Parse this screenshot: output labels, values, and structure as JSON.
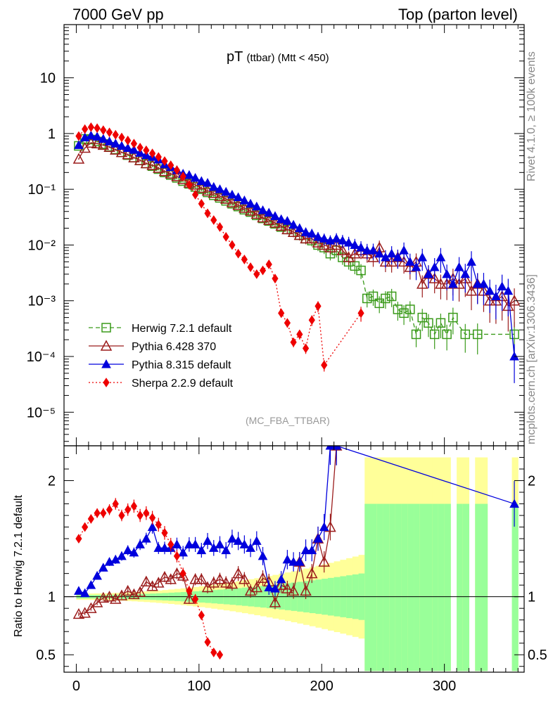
{
  "header": {
    "left": "7000 GeV pp",
    "right": "Top (parton level)"
  },
  "side_labels": {
    "top": "Rivet 4.1.0, ≥ 100k events",
    "bottom": "mcplots.cern.ch [arXiv:1306.3436]"
  },
  "plot": {
    "title_main": "pT",
    "title_sub": "(ttbar) (Mtt < 450)",
    "analysis_name": "(MC_FBA_TTBAR)",
    "ratio_ylabel": "Ratio to Herwig 7.2.1 default"
  },
  "colors": {
    "herwig": "#3a9a1a",
    "pythia6": "#9b1c1c",
    "pythia8": "#0000dd",
    "sherpa": "#ee0000",
    "band_green": "#99ff99",
    "band_yellow": "#ffff99"
  },
  "chart_data": {
    "type": "scatter",
    "xlim": [
      -10,
      365
    ],
    "main_ylim": [
      2.5e-06,
      90
    ],
    "ratio_ylim": [
      0.35,
      2.3
    ],
    "x_ticks": [
      0,
      100,
      200,
      300
    ],
    "x_tick_labels": [
      "0",
      "100",
      "200",
      "300"
    ],
    "main_y_ticks": [
      1e-05,
      0.0001,
      0.001,
      0.01,
      0.1,
      1,
      10
    ],
    "main_y_tick_labels": [
      "10⁻⁵",
      "10⁻⁴",
      "10⁻³",
      "10⁻²",
      "10⁻¹",
      "1",
      "10"
    ],
    "ratio_y_ticks": [
      0.5,
      1,
      2
    ],
    "ratio_y_tick_labels": [
      "0.5",
      "1",
      "2"
    ],
    "legend": [
      {
        "name": "Herwig 7.2.1 default",
        "marker": "square-open",
        "line": "dashed"
      },
      {
        "name": "Pythia 6.428 370",
        "marker": "triangle-open",
        "line": "solid"
      },
      {
        "name": "Pythia 8.315 default",
        "marker": "triangle-filled",
        "line": "solid"
      },
      {
        "name": "Sherpa 2.2.9 default",
        "marker": "diamond-filled",
        "line": "dotted"
      }
    ],
    "series": [
      {
        "name": "Herwig 7.2.1 default",
        "x": [
          2,
          7,
          12,
          17,
          22,
          27,
          32,
          37,
          42,
          47,
          52,
          57,
          62,
          67,
          72,
          77,
          82,
          87,
          92,
          97,
          102,
          107,
          112,
          117,
          122,
          127,
          132,
          137,
          142,
          147,
          152,
          157,
          162,
          167,
          172,
          177,
          182,
          187,
          192,
          197,
          202,
          207,
          212,
          217,
          222,
          227,
          232,
          237,
          242,
          247,
          252,
          257,
          262,
          267,
          272,
          277,
          282,
          287,
          292,
          297,
          302,
          307,
          317,
          327,
          357
        ],
        "y": [
          0.6,
          0.8,
          0.78,
          0.72,
          0.65,
          0.58,
          0.52,
          0.46,
          0.41,
          0.37,
          0.33,
          0.29,
          0.26,
          0.23,
          0.2,
          0.18,
          0.16,
          0.14,
          0.125,
          0.11,
          0.1,
          0.088,
          0.078,
          0.07,
          0.062,
          0.055,
          0.049,
          0.043,
          0.039,
          0.034,
          0.03,
          0.027,
          0.024,
          0.021,
          0.019,
          0.017,
          0.015,
          0.013,
          0.012,
          0.01,
          0.009,
          0.007,
          0.008,
          0.006,
          0.005,
          0.0042,
          0.0035,
          0.0011,
          0.0012,
          0.0009,
          0.0011,
          0.0012,
          0.0007,
          0.0006,
          0.0007,
          0.00025,
          0.0005,
          0.0004,
          0.00025,
          0.0004,
          0.00025,
          0.0005,
          0.00025,
          0.00025,
          0.00025
        ]
      },
      {
        "name": "Pythia 6.428 370",
        "x": [
          2,
          7,
          12,
          17,
          22,
          27,
          32,
          37,
          42,
          47,
          52,
          57,
          62,
          67,
          72,
          77,
          82,
          87,
          92,
          97,
          102,
          107,
          112,
          117,
          122,
          127,
          132,
          137,
          142,
          147,
          152,
          157,
          162,
          167,
          172,
          177,
          182,
          187,
          192,
          197,
          202,
          207,
          212,
          217,
          222,
          227,
          232,
          237,
          242,
          247,
          252,
          257,
          262,
          267,
          272,
          277,
          282,
          287,
          292,
          297,
          302,
          307,
          312,
          317,
          322,
          327,
          332,
          337,
          342,
          347,
          352,
          357
        ],
        "y": [
          0.35,
          0.55,
          0.68,
          0.66,
          0.62,
          0.57,
          0.51,
          0.46,
          0.42,
          0.37,
          0.33,
          0.29,
          0.27,
          0.24,
          0.21,
          0.19,
          0.17,
          0.15,
          0.13,
          0.12,
          0.105,
          0.094,
          0.085,
          0.075,
          0.067,
          0.058,
          0.052,
          0.046,
          0.041,
          0.036,
          0.031,
          0.028,
          0.025,
          0.022,
          0.019,
          0.017,
          0.015,
          0.013,
          0.013,
          0.011,
          0.01,
          0.009,
          0.01,
          0.008,
          0.006,
          0.007,
          0.008,
          0.007,
          0.006,
          0.009,
          0.005,
          0.005,
          0.006,
          0.005,
          0.004,
          0.005,
          0.002,
          0.003,
          0.0025,
          0.002,
          0.002,
          0.0025,
          0.002,
          0.0025,
          0.0015,
          0.002,
          0.0015,
          0.001,
          0.001,
          0.0012,
          0.0008,
          0.001
        ]
      },
      {
        "name": "Pythia 8.315 default",
        "x": [
          2,
          7,
          12,
          17,
          22,
          27,
          32,
          37,
          42,
          47,
          52,
          57,
          62,
          67,
          72,
          77,
          82,
          87,
          92,
          97,
          102,
          107,
          112,
          117,
          122,
          127,
          132,
          137,
          142,
          147,
          152,
          157,
          162,
          167,
          172,
          177,
          182,
          187,
          192,
          197,
          202,
          207,
          212,
          217,
          222,
          227,
          232,
          237,
          242,
          247,
          252,
          257,
          262,
          267,
          272,
          277,
          282,
          287,
          292,
          297,
          302,
          307,
          312,
          317,
          322,
          327,
          332,
          337,
          342,
          347,
          352,
          357
        ],
        "y": [
          0.62,
          0.85,
          0.92,
          0.88,
          0.8,
          0.72,
          0.66,
          0.6,
          0.55,
          0.51,
          0.45,
          0.41,
          0.38,
          0.34,
          0.28,
          0.25,
          0.22,
          0.19,
          0.18,
          0.16,
          0.14,
          0.13,
          0.11,
          0.1,
          0.09,
          0.08,
          0.072,
          0.063,
          0.055,
          0.049,
          0.042,
          0.038,
          0.033,
          0.029,
          0.027,
          0.023,
          0.02,
          0.017,
          0.016,
          0.014,
          0.013,
          0.012,
          0.013,
          0.012,
          0.011,
          0.01,
          0.009,
          0.008,
          0.008,
          0.007,
          0.006,
          0.007,
          0.006,
          0.008,
          0.005,
          0.004,
          0.006,
          0.003,
          0.004,
          0.006,
          0.003,
          0.002,
          0.004,
          0.003,
          0.005,
          0.002,
          0.002,
          0.0015,
          0.0012,
          0.0018,
          0.0015,
          0.0001
        ]
      },
      {
        "name": "Sherpa 2.2.9 default",
        "x": [
          2,
          7,
          12,
          17,
          22,
          27,
          32,
          37,
          42,
          47,
          52,
          57,
          62,
          67,
          72,
          77,
          82,
          87,
          92,
          97,
          102,
          107,
          112,
          117,
          122,
          127,
          132,
          137,
          142,
          147,
          152,
          157,
          162,
          167,
          172,
          177,
          182,
          187,
          192,
          197,
          202,
          232
        ],
        "y": [
          0.9,
          1.2,
          1.3,
          1.25,
          1.15,
          1.05,
          0.95,
          0.85,
          0.75,
          0.66,
          0.56,
          0.5,
          0.44,
          0.38,
          0.32,
          0.27,
          0.22,
          0.17,
          0.12,
          0.08,
          0.055,
          0.037,
          0.028,
          0.021,
          0.014,
          0.01,
          0.007,
          0.0055,
          0.004,
          0.003,
          0.0035,
          0.0045,
          0.0025,
          0.0006,
          0.0004,
          0.00018,
          0.00025,
          0.00014,
          0.00045,
          0.0008,
          7e-05,
          0.0006
        ]
      }
    ],
    "ratio_series": [
      {
        "name": "Pythia 6.428 370",
        "x": [
          2,
          7,
          12,
          17,
          22,
          27,
          32,
          37,
          42,
          47,
          52,
          57,
          62,
          67,
          72,
          77,
          82,
          87,
          92,
          97,
          102,
          107,
          112,
          117,
          122,
          127,
          132,
          137,
          142,
          147,
          152,
          157,
          162,
          167,
          172,
          177,
          182,
          187,
          192,
          197,
          202,
          207,
          212
        ],
        "y": [
          0.85,
          0.86,
          0.9,
          0.95,
          0.99,
          1.0,
          0.98,
          1.01,
          1.05,
          1.02,
          1.04,
          1.13,
          1.09,
          1.12,
          1.17,
          1.15,
          1.2,
          1.18,
          0.98,
          1.15,
          1.15,
          1.08,
          1.12,
          1.15,
          1.12,
          1.11,
          1.2,
          1.15,
          1.05,
          1.08,
          1.16,
          1.13,
          0.95,
          1.1,
          1.07,
          1.05,
          1.3,
          1.05,
          1.2,
          1.5,
          1.3,
          1.6,
          2.3
        ]
      },
      {
        "name": "Pythia 8.315 default",
        "x": [
          2,
          7,
          12,
          17,
          22,
          27,
          32,
          37,
          42,
          47,
          52,
          57,
          62,
          67,
          72,
          77,
          82,
          87,
          92,
          97,
          102,
          107,
          112,
          117,
          122,
          127,
          132,
          137,
          142,
          147,
          152,
          157,
          162,
          167,
          172,
          177,
          182,
          187,
          192,
          197,
          202,
          207,
          212,
          357
        ],
        "y": [
          1.05,
          1.03,
          1.1,
          1.18,
          1.25,
          1.3,
          1.32,
          1.35,
          1.4,
          1.38,
          1.45,
          1.5,
          1.6,
          1.42,
          1.42,
          1.42,
          1.45,
          1.38,
          1.45,
          1.45,
          1.4,
          1.48,
          1.42,
          1.45,
          1.4,
          1.5,
          1.48,
          1.45,
          1.42,
          1.48,
          1.35,
          1.08,
          1.07,
          1.15,
          1.32,
          1.3,
          1.3,
          1.4,
          1.4,
          1.5,
          1.6,
          2.3,
          2.3,
          1.8
        ]
      },
      {
        "name": "Sherpa 2.2.9 default",
        "x": [
          2,
          7,
          12,
          17,
          22,
          27,
          32,
          37,
          42,
          47,
          52,
          57,
          62,
          67,
          72,
          77,
          82,
          87,
          92,
          97,
          102,
          107,
          112,
          117
        ],
        "y": [
          1.5,
          1.6,
          1.67,
          1.72,
          1.72,
          1.75,
          1.8,
          1.7,
          1.75,
          1.78,
          1.7,
          1.72,
          1.68,
          1.62,
          1.55,
          1.45,
          1.35,
          1.2,
          1.05,
          0.98,
          0.84,
          0.61,
          0.52,
          0.5
        ]
      }
    ]
  }
}
